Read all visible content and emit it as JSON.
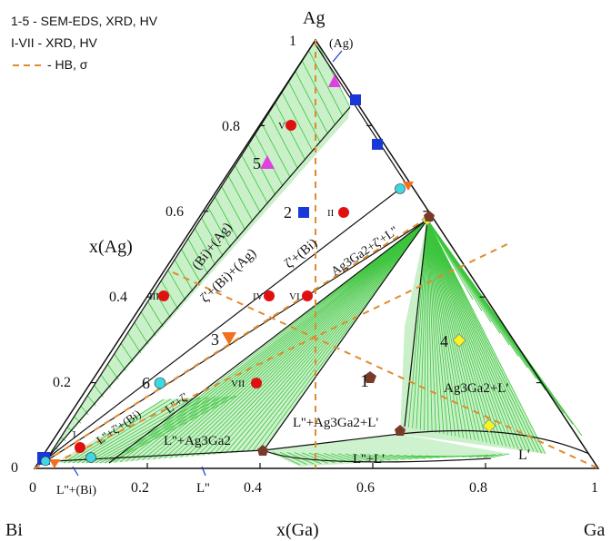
{
  "legend": {
    "line1": "1-5 - SEM-EDS, XRD, HV",
    "line2": "I-VII - XRD, HV",
    "line3": "- HB, σ"
  },
  "corners": {
    "top": "Ag",
    "left": "Bi",
    "right": "Ga"
  },
  "axes": {
    "left_label": "x(Ag)",
    "bottom_label": "x(Ga)",
    "left_ticks": [
      "1",
      "0.8",
      "0.6",
      "0.4",
      "0.2",
      "0"
    ],
    "bottom_ticks": [
      "0",
      "0.2",
      "0.4",
      "0.6",
      "0.8",
      "1"
    ]
  },
  "regions": {
    "ag": "(Ag)",
    "bi_ag": "(Bi)+(Ag)",
    "zeta_bi_ag": "ζ'+(Bi)+(Ag)",
    "zeta_bi": "ζ'+(Bi)",
    "ag3ga2_zeta_l": "Ag3Ga2+ζ'+L''",
    "l_zeta_bi": "L''+ζ'+(Bi)",
    "l_zeta": "L''+ζ'",
    "l_ag3ga2": "L''+Ag3Ga2",
    "l_ag3ga2_l": "L''+Ag3Ga2+L'",
    "ag3ga2_l": "Ag3Ga2+L'",
    "lp": "L'",
    "lpp_lp": "L''+L'",
    "lpp_bi": "L''+(Bi)",
    "lpp": "L''"
  },
  "samples_arabic": [
    "1",
    "2",
    "3",
    "4",
    "5",
    "6"
  ],
  "samples_roman": [
    "I",
    "II",
    "III",
    "IV",
    "V",
    "VI",
    "VII"
  ],
  "colors": {
    "tie_lines": "#3cc43c",
    "phase_fill": "#9de39d",
    "hb_lines": "#e08a2e",
    "red_circle": "#e01010",
    "blue_square": "#1838d8",
    "magenta_triangle": "#e040e0",
    "orange_triangle": "#f07020",
    "yellow_diamond": "#f5f520",
    "cyan_circle": "#40d8e0",
    "brown_pentagon": "#7a3a2a"
  }
}
